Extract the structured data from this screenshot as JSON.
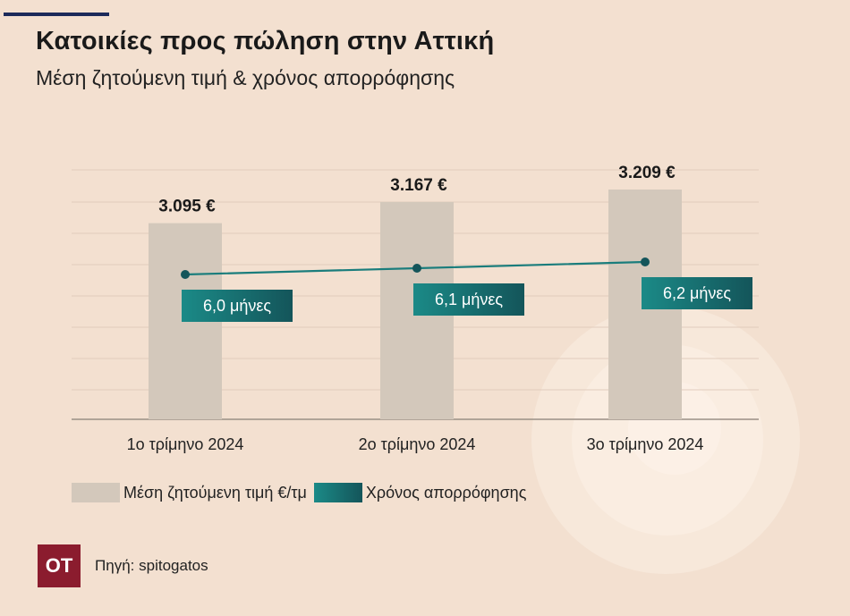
{
  "header": {
    "title": "Κατοικίες προς πώληση στην Αττική",
    "subtitle": "Μέση ζητούμενη τιμή & χρόνος απορρόφησης"
  },
  "chart_data": {
    "type": "bar",
    "categories": [
      "1ο τρίμηνο 2024",
      "2ο τρίμηνο 2024",
      "3ο τρίμηνο 2024"
    ],
    "series": [
      {
        "name": "Μέση ζητούμενη τιμή €/τμ",
        "type": "bar",
        "values": [
          3095,
          3167,
          3209
        ],
        "labels": [
          "3.095 €",
          "3.167 €",
          "3.209 €"
        ],
        "color": "#d3c8bb"
      },
      {
        "name": "Χρόνος απορρόφησης",
        "type": "line",
        "values": [
          6.0,
          6.1,
          6.2
        ],
        "labels": [
          "6,0 μήνες",
          "6,1 μήνες",
          "6,2 μήνες"
        ],
        "color": "#1a7d7c"
      }
    ],
    "grid": true,
    "legend": "bottom-left"
  },
  "legend": {
    "bar_label": "Μέση ζητούμενη τιμή €/τμ",
    "line_label": "Χρόνος απορρόφησης"
  },
  "source": {
    "logo_text": "ΟΤ",
    "text": "Πηγή: spitogatos"
  },
  "colors": {
    "background": "#f3e0d0",
    "bar": "#d3c8bb",
    "line": "#1a7d7c",
    "label_box_dark": "#14555a",
    "label_box_light": "#1b8a87",
    "logo": "#8b1c2e",
    "accent": "#1c2a5a"
  }
}
